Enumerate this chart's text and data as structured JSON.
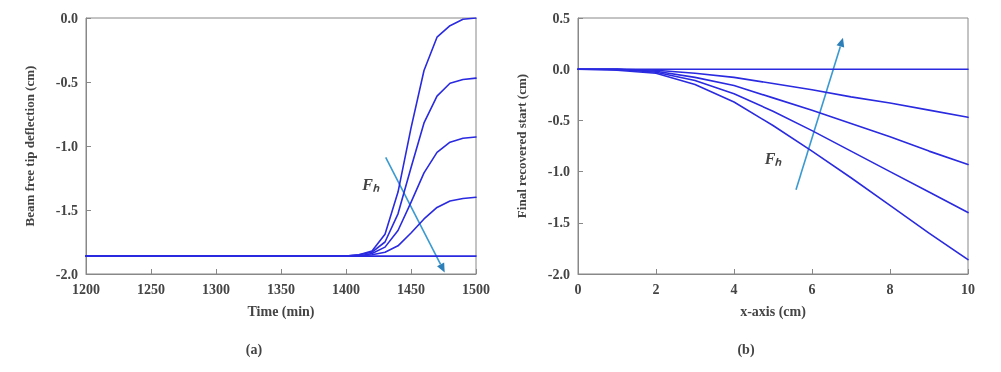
{
  "chart_data": [
    {
      "type": "line",
      "xlabel": "Time (min)",
      "ylabel": "Beam free tip deflection (cm)",
      "x": [
        1200,
        1400,
        1410,
        1420,
        1430,
        1440,
        1450,
        1460,
        1470,
        1480,
        1490,
        1500
      ],
      "series": [
        {
          "color": "#2a2ae0",
          "values": [
            -1.86,
            -1.86,
            -1.85,
            -1.82,
            -1.69,
            -1.36,
            -0.86,
            -0.41,
            -0.15,
            -0.06,
            -0.01,
            0.0
          ]
        },
        {
          "color": "#2a2ae0",
          "values": [
            -1.86,
            -1.86,
            -1.85,
            -1.83,
            -1.75,
            -1.53,
            -1.17,
            -0.82,
            -0.61,
            -0.51,
            -0.48,
            -0.47
          ]
        },
        {
          "color": "#2a2ae0",
          "values": [
            -1.86,
            -1.86,
            -1.86,
            -1.84,
            -1.79,
            -1.66,
            -1.44,
            -1.21,
            -1.05,
            -0.97,
            -0.94,
            -0.93
          ]
        },
        {
          "color": "#2a2ae0",
          "values": [
            -1.86,
            -1.86,
            -1.86,
            -1.85,
            -1.83,
            -1.78,
            -1.68,
            -1.57,
            -1.48,
            -1.43,
            -1.41,
            -1.4
          ]
        },
        {
          "color": "#2a2ae0",
          "values": [
            -1.86,
            -1.86,
            -1.86,
            -1.86,
            -1.86,
            -1.86,
            -1.86,
            -1.86,
            -1.86,
            -1.86,
            -1.86,
            -1.86
          ]
        }
      ],
      "xlim": [
        1200,
        1500
      ],
      "xticks": [
        1200,
        1250,
        1300,
        1350,
        1400,
        1450,
        1500
      ],
      "ylim": [
        -2,
        0
      ],
      "yticks": [
        {
          "value": -2,
          "label": "-2.0"
        },
        {
          "value": -1.5,
          "label": "-1.5"
        },
        {
          "value": -1,
          "label": "-1.0"
        },
        {
          "value": -0.5,
          "label": "-0.5"
        },
        {
          "value": 0,
          "label": "0.0"
        }
      ],
      "grid": false,
      "marker": "none",
      "line_style": "solid",
      "annotations": [
        "Fₕ",
        "(a)"
      ]
    },
    {
      "type": "line",
      "xlabel": "x-axis (cm)",
      "ylabel": "Final recovered start (cm)",
      "x": [
        0,
        1,
        2,
        3,
        4,
        5,
        6,
        7,
        8,
        9,
        10
      ],
      "series": [
        {
          "color": "#2a2ae0",
          "values": [
            0,
            0,
            0,
            0,
            0,
            0,
            0,
            0,
            0,
            0,
            0
          ]
        },
        {
          "color": "#2a2ae0",
          "values": [
            0,
            0,
            -0.01,
            -0.04,
            -0.08,
            -0.14,
            -0.2,
            -0.27,
            -0.33,
            -0.4,
            -0.47
          ]
        },
        {
          "color": "#2a2ae0",
          "values": [
            0,
            0,
            -0.02,
            -0.08,
            -0.16,
            -0.28,
            -0.4,
            -0.53,
            -0.66,
            -0.8,
            -0.93
          ]
        },
        {
          "color": "#2a2ae0",
          "values": [
            0,
            0,
            -0.03,
            -0.11,
            -0.24,
            -0.41,
            -0.6,
            -0.8,
            -1.0,
            -1.2,
            -1.4
          ]
        },
        {
          "color": "#2a2ae0",
          "values": [
            0,
            -0.01,
            -0.04,
            -0.15,
            -0.32,
            -0.55,
            -0.8,
            -1.06,
            -1.33,
            -1.6,
            -1.86
          ]
        }
      ],
      "xlim": [
        0,
        10
      ],
      "xticks": [
        0,
        2,
        4,
        6,
        8,
        10
      ],
      "ylim": [
        -2,
        0.5
      ],
      "yticks": [
        {
          "value": -2,
          "label": "-2.0"
        },
        {
          "value": -1.5,
          "label": "-1.5"
        },
        {
          "value": -1,
          "label": "-1.0"
        },
        {
          "value": -0.5,
          "label": "-0.5"
        },
        {
          "value": 0,
          "label": "0.0"
        },
        {
          "value": 0.5,
          "label": "0.5"
        }
      ],
      "grid": false,
      "marker": "none",
      "line_style": "solid",
      "annotations": [
        "Fₕ",
        "(b)"
      ]
    }
  ]
}
